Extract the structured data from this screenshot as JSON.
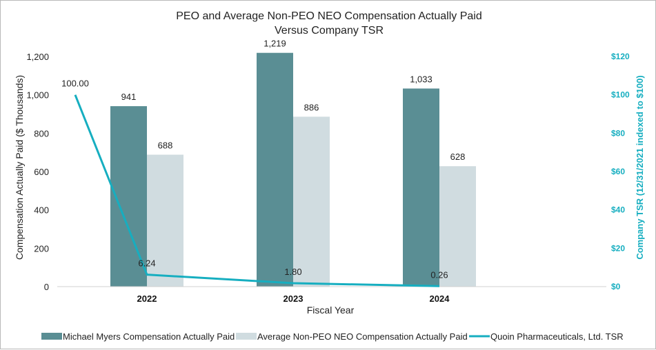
{
  "chart_data": {
    "type": "bar",
    "title_line1": "PEO and Average Non-PEO NEO Compensation Actually Paid",
    "title_line2": "Versus Company TSR",
    "xlabel": "Fiscal Year",
    "ylabel": "Compensation Actually Paid ($ Thousands)",
    "y2label": "Company TSR (12/31/2021 indexed to $100)",
    "categories": [
      "2022",
      "2023",
      "2024"
    ],
    "ylim": [
      0,
      1200
    ],
    "yticks": [
      0,
      200,
      400,
      600,
      800,
      1000,
      1200
    ],
    "ytick_labels": [
      "0",
      "200",
      "400",
      "600",
      "800",
      "1,000",
      "1,200"
    ],
    "y2lim": [
      0,
      120
    ],
    "y2ticks": [
      0,
      20,
      40,
      60,
      80,
      100,
      120
    ],
    "y2tick_labels": [
      "$0",
      "$20",
      "$40",
      "$60",
      "$80",
      "$100",
      "$120"
    ],
    "series": [
      {
        "name": "Michael Myers Compensation Actually Paid",
        "kind": "bar",
        "color": "#5a8e94",
        "values": [
          941,
          1219,
          1033
        ],
        "labels": [
          "941",
          "1,219",
          "1,033"
        ]
      },
      {
        "name": "Average Non-PEO NEO Compensation Actually Paid",
        "kind": "bar",
        "color": "#d0dce0",
        "values": [
          688,
          886,
          628
        ],
        "labels": [
          "688",
          "886",
          "628"
        ]
      },
      {
        "name": "Quoin Pharmaceuticals, Ltd. TSR",
        "kind": "line",
        "axis": "right",
        "color": "#16aec0",
        "x": [
          "2021",
          "2022",
          "2023",
          "2024"
        ],
        "values": [
          100.0,
          6.24,
          1.8,
          0.26
        ],
        "labels": [
          "100.00",
          "6.24",
          "1.80",
          "0.26"
        ]
      }
    ]
  }
}
